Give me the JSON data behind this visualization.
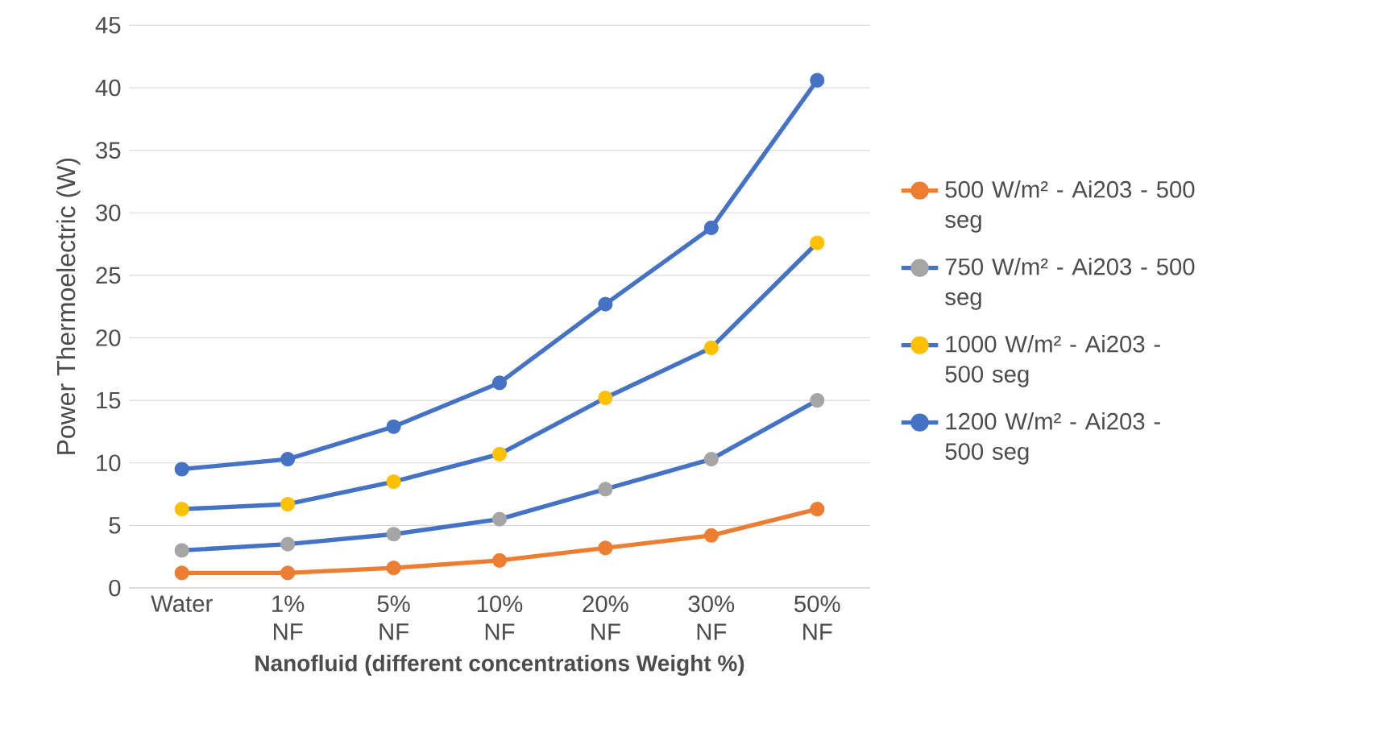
{
  "chart_data": {
    "type": "line",
    "xlabel": "Nanofluid (different concentrations Weight %)",
    "ylabel": "Power Thermoelectric (W)",
    "categories": [
      "Water",
      "1% NF",
      "5% NF",
      "10% NF",
      "20% NF",
      "30% NF",
      "50% NF"
    ],
    "series": [
      {
        "name": "500 W/m² - Ai203 - 500 seg",
        "color": "#ed7d31",
        "colors": [
          "#ed7d31",
          "#ed7d31",
          "#ed7d31",
          "#ed7d31",
          "#ed7d31",
          "#ed7d31",
          "#ed7d31"
        ],
        "values": [
          1.2,
          1.2,
          1.6,
          2.2,
          3.2,
          4.2,
          6.3
        ]
      },
      {
        "name": "750 W/m² - Ai203 - 500 seg",
        "color": "#4472c4",
        "colors": [
          "#a5a5a5",
          "#a5a5a5",
          "#a5a5a5",
          "#a5a5a5",
          "#a5a5a5",
          "#a5a5a5",
          "#a5a5a5"
        ],
        "values": [
          3.0,
          3.5,
          4.3,
          5.5,
          7.9,
          10.3,
          15.0
        ]
      },
      {
        "name": "1000 W/m² - Ai203 - 500 seg",
        "color": "#4472c4",
        "colors": [
          "#ffc000",
          "#ffc000",
          "#ffc000",
          "#ffc000",
          "#ffc000",
          "#ffc000",
          "#ffc000"
        ],
        "values": [
          6.3,
          6.7,
          8.5,
          10.7,
          15.2,
          19.2,
          27.6
        ]
      },
      {
        "name": "1200 W/m² - Ai203 - 500 seg",
        "color": "#4472c4",
        "colors": [
          "#4472c4",
          "#4472c4",
          "#4472c4",
          "#4472c4",
          "#4472c4",
          "#4472c4",
          "#4472c4"
        ],
        "values": [
          9.5,
          10.3,
          12.9,
          16.4,
          22.7,
          28.8,
          40.6
        ]
      }
    ],
    "ylim": [
      0,
      45
    ],
    "yticks": [
      0,
      5,
      10,
      15,
      20,
      25,
      30,
      35,
      40,
      45
    ],
    "grid": "y",
    "legend": "right",
    "marker": "circle",
    "line_style": "solid"
  }
}
